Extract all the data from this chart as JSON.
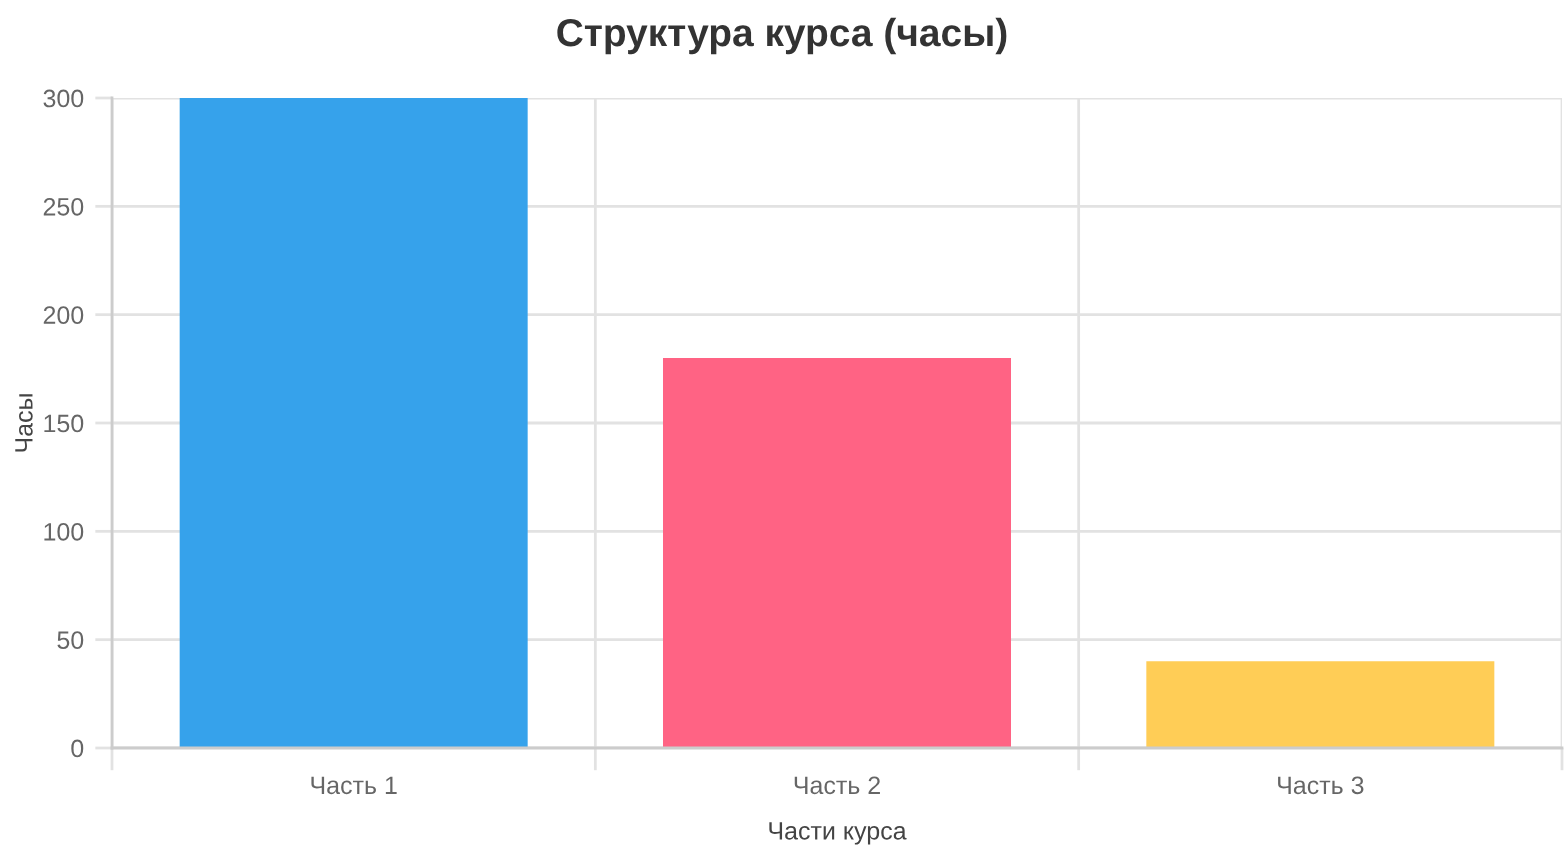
{
  "chart_data": {
    "type": "bar",
    "title": "Структура курса (часы)",
    "xlabel": "Части курса",
    "ylabel": "Часы",
    "categories": [
      "Часть 1",
      "Часть 2",
      "Часть 3"
    ],
    "values": [
      300,
      180,
      40
    ],
    "colors": [
      "#36a2eb",
      "#ff6384",
      "#ffcd56"
    ],
    "ylim": [
      0,
      300
    ],
    "yticks": [
      0,
      50,
      100,
      150,
      200,
      250,
      300
    ],
    "grid": true,
    "legend": false
  }
}
